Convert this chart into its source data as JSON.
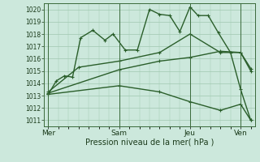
{
  "bg_color": "#cce8dc",
  "grid_color": "#a0c8b0",
  "line_color": "#2a5e2a",
  "xlabel": "Pression niveau de la mer( hPa )",
  "ylim": [
    1010.5,
    1020.5
  ],
  "yticks": [
    1011,
    1012,
    1013,
    1014,
    1015,
    1016,
    1017,
    1018,
    1019,
    1020
  ],
  "xtick_labels": [
    "Mer",
    "Sam",
    "Jeu",
    "Ven"
  ],
  "xtick_positions": [
    0,
    3.5,
    7,
    9.5
  ],
  "vline_positions": [
    0,
    3.5,
    7,
    9.5
  ],
  "series1_x": [
    0,
    0.4,
    0.8,
    1.2,
    1.6,
    2.2,
    2.8,
    3.2,
    3.8,
    4.4,
    5.0,
    5.5,
    6.0,
    6.5,
    7.0,
    7.4,
    7.9,
    8.4,
    9.0,
    9.5,
    10.0
  ],
  "series1_y": [
    1013.1,
    1014.2,
    1014.6,
    1014.5,
    1017.7,
    1018.3,
    1017.5,
    1018.0,
    1016.7,
    1016.7,
    1020.0,
    1019.6,
    1019.5,
    1018.2,
    1020.2,
    1019.5,
    1019.5,
    1018.1,
    1016.5,
    1013.5,
    1011.0
  ],
  "series2_x": [
    0,
    1.5,
    3.5,
    5.5,
    7.0,
    8.5,
    9.5,
    10.0
  ],
  "series2_y": [
    1013.3,
    1015.3,
    1015.8,
    1016.5,
    1018.0,
    1016.5,
    1016.5,
    1015.0
  ],
  "series3_x": [
    0,
    3.5,
    5.5,
    7.0,
    8.5,
    9.5,
    10.0
  ],
  "series3_y": [
    1013.2,
    1015.1,
    1015.8,
    1016.1,
    1016.6,
    1016.5,
    1015.2
  ],
  "series4_x": [
    0,
    3.5,
    5.5,
    7.0,
    8.5,
    9.5,
    10.0
  ],
  "series4_y": [
    1013.1,
    1013.8,
    1013.3,
    1012.5,
    1011.8,
    1012.3,
    1011.0
  ]
}
